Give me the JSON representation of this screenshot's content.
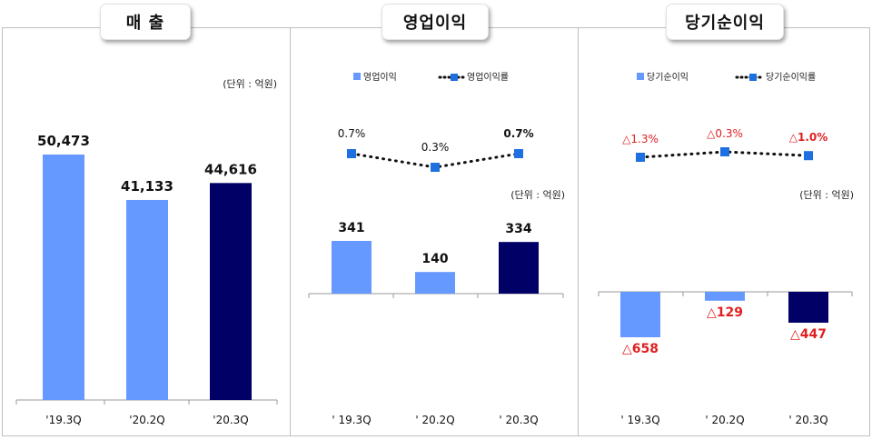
{
  "chart_data": [
    {
      "type": "bar",
      "title": "매 출",
      "unit": "(단위 : 억원)",
      "categories": [
        "'19.3Q",
        "'20.2Q",
        "'20.3Q"
      ],
      "series": [
        {
          "values": [
            50473,
            41133,
            44616
          ]
        }
      ],
      "value_labels": [
        "50,473",
        "41,133",
        "44,616"
      ],
      "bar_colors": [
        "#6699ff",
        "#6699ff",
        "#000066"
      ],
      "ylim": [
        0,
        55000
      ]
    },
    {
      "type": "bar",
      "title": "영업이익",
      "unit": "(단위 : 억원)",
      "legend": [
        "영업이익",
        "영업이익률"
      ],
      "categories": [
        "' 19.3Q",
        "' 20.2Q",
        "' 20.3Q"
      ],
      "series": [
        {
          "name": "영업이익",
          "values": [
            341,
            140,
            334
          ],
          "labels": [
            "341",
            "140",
            "334"
          ]
        },
        {
          "name": "영업이익률",
          "values": [
            0.7,
            0.3,
            0.7
          ],
          "labels": [
            "0.7%",
            "0.3%",
            "0.7%"
          ]
        }
      ],
      "bar_colors": [
        "#6699ff",
        "#6699ff",
        "#000066"
      ],
      "marker_color": "#1e6fe0"
    },
    {
      "type": "bar",
      "title": "당기순이익",
      "unit": "(단위 : 억원)",
      "legend": [
        "당기순이익",
        "당기순이익률"
      ],
      "categories": [
        "' 19.3Q",
        "' 20.2Q",
        "' 20.3Q"
      ],
      "series": [
        {
          "name": "당기순이익",
          "values": [
            -658,
            -129,
            -447
          ],
          "labels": [
            "△658",
            "△129",
            "△447"
          ]
        },
        {
          "name": "당기순이익률",
          "values": [
            -1.3,
            -0.3,
            -1.0
          ],
          "labels": [
            "△1.3%",
            "△0.3%",
            "△1.0%"
          ]
        }
      ],
      "bar_colors": [
        "#6699ff",
        "#6699ff",
        "#000066"
      ],
      "marker_color": "#1e6fe0",
      "negative_label_color": "#e02020"
    }
  ]
}
